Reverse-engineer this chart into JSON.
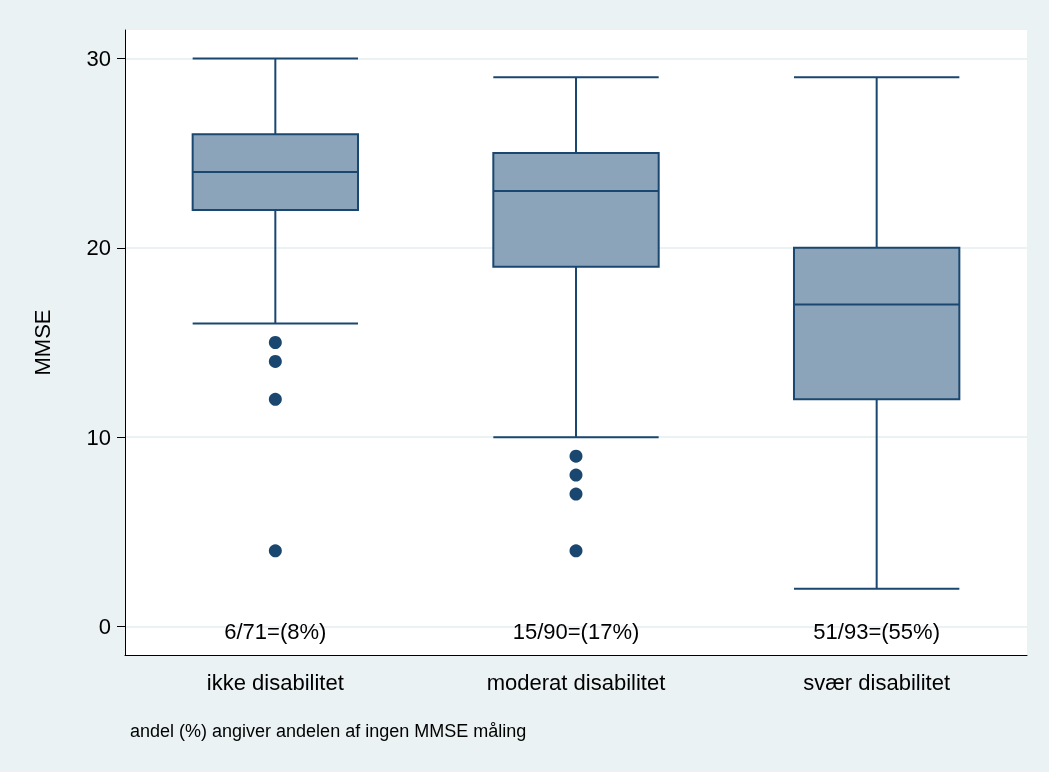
{
  "chart_data": {
    "type": "box",
    "ylabel": "MMSE",
    "categories": [
      "ikke disabilitet",
      "moderat disabilitet",
      "svær disabilitet"
    ],
    "boxes": [
      {
        "low": 16,
        "q1": 22,
        "median": 24,
        "q3": 26,
        "high": 30,
        "outliers": [
          15,
          14,
          12,
          4
        ]
      },
      {
        "low": 10,
        "q1": 19,
        "median": 23,
        "q3": 25,
        "high": 29,
        "outliers": [
          9,
          8,
          7,
          4
        ]
      },
      {
        "low": 2,
        "q1": 12,
        "median": 17,
        "q3": 20,
        "high": 29
      }
    ],
    "color": "#8ca4ba",
    "ylim": [
      -1.5,
      31.5
    ],
    "yticks": [
      0,
      10,
      20,
      30
    ],
    "grid": "y",
    "annotations": [
      "6/71=(8%)",
      "15/90=(17%)",
      "51/93=(55%)",
      "andel (%) angiver andelen af ingen MMSE måling"
    ]
  }
}
